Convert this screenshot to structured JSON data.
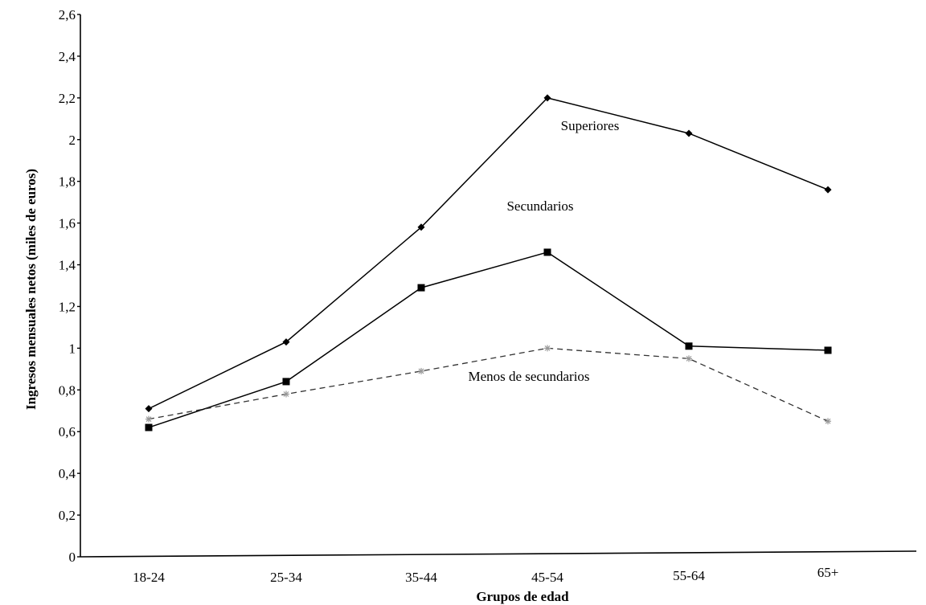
{
  "chart_data": {
    "type": "line",
    "title": "",
    "xlabel": "Grupos de edad",
    "ylabel": "Ingresos mensuales netos (miles de euros)",
    "categories": [
      "18-24",
      "25-34",
      "35-44",
      "45-54",
      "55-64",
      "65+"
    ],
    "ylim": [
      0,
      2.6
    ],
    "yticks": [
      "0",
      "0,2",
      "0,4",
      "0,6",
      "0,8",
      "1",
      "1,2",
      "1,4",
      "1,6",
      "1,8",
      "2",
      "2,2",
      "2,4",
      "2,6"
    ],
    "grid": false,
    "series": [
      {
        "name": "Superiores",
        "values": [
          0.71,
          1.03,
          1.58,
          2.2,
          2.03,
          1.76
        ],
        "color": "#000000",
        "marker": "diamond",
        "dash": "solid"
      },
      {
        "name": "Secundarios",
        "values": [
          0.62,
          0.84,
          1.29,
          1.46,
          1.01,
          0.99
        ],
        "color": "#000000",
        "marker": "square",
        "dash": "solid"
      },
      {
        "name": "Menos de secundarios",
        "values": [
          0.66,
          0.78,
          0.89,
          1.0,
          0.95,
          0.65
        ],
        "color": "#333333",
        "marker": "star",
        "dash": "dashed"
      }
    ]
  }
}
